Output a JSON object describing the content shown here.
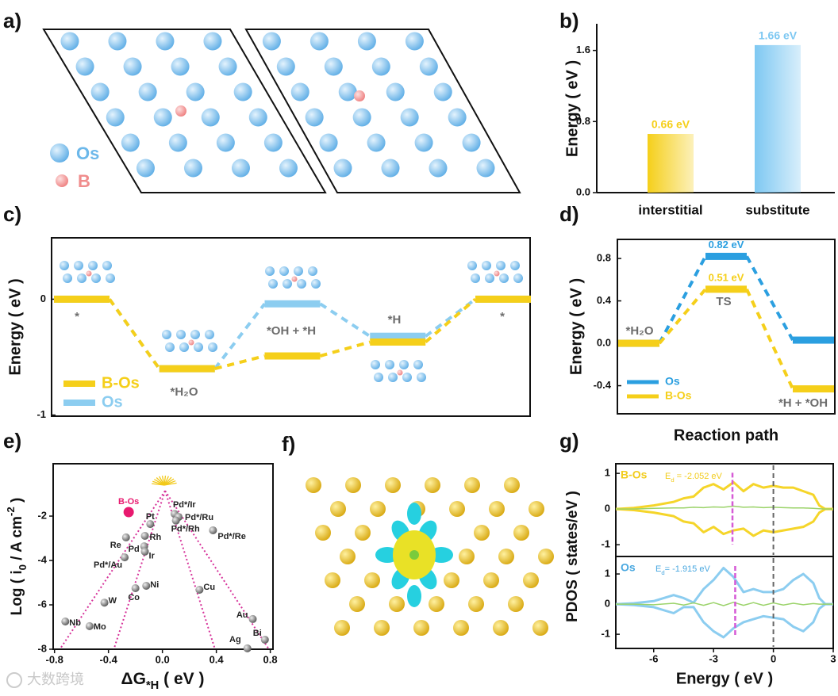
{
  "figures": [
    {
      "label": "a)",
      "legend": [
        "Os",
        "B"
      ]
    },
    {
      "label": "f)"
    }
  ],
  "watermark": "大数跨境",
  "chart_data": [
    {
      "type": "bar",
      "label": "b)",
      "ylabel": "Energy ( eV )",
      "categories": [
        "interstitial",
        "substitute"
      ],
      "values": [
        0.66,
        1.66
      ],
      "value_labels": [
        "0.66 eV",
        "1.66 eV"
      ],
      "colors": [
        "#f5cf1a",
        "#7ec8f2"
      ],
      "ylim": [
        0,
        1.9
      ],
      "yticks": [
        {
          "value": 0,
          "label": "0.0"
        },
        0.8,
        1.6
      ]
    },
    {
      "type": "energy-diagram",
      "label": "c)",
      "ylabel": "Energy ( eV )",
      "categories": [
        "*",
        "*H₂O",
        "*OH + *H",
        "*H",
        "*"
      ],
      "series": [
        {
          "name": "B-Os",
          "color": "#f5cf1a",
          "values": [
            0,
            -0.6,
            -0.49,
            -0.37,
            0
          ]
        },
        {
          "name": "Os",
          "color": "#8ccdf0",
          "values": [
            0,
            -0.6,
            -0.04,
            -0.32,
            0
          ]
        }
      ],
      "ylim": [
        -1.01,
        0.53
      ],
      "yticks": [
        -1,
        0
      ],
      "legend": "lower left"
    },
    {
      "type": "energy-diagram",
      "label": "d)",
      "ylabel": "Energy ( eV )",
      "xlabel": "Reaction path",
      "categories": [
        "*H₂O",
        "TS",
        "*H + *OH"
      ],
      "series": [
        {
          "name": "Os",
          "color": "#2b9fe0",
          "values": [
            0,
            0.82,
            0.03
          ],
          "value_labels": [
            null,
            "0.82 eV",
            null
          ]
        },
        {
          "name": "B-Os",
          "color": "#f5cf1a",
          "values": [
            0,
            0.51,
            -0.43
          ],
          "value_labels": [
            null,
            "0.51 eV",
            null
          ]
        }
      ],
      "ylim": [
        -0.665,
        0.98
      ],
      "yticks": [
        -0.4,
        {
          "value": 0,
          "label": "0.0"
        },
        0.4,
        0.8
      ],
      "legend": "lower left"
    },
    {
      "type": "scatter",
      "label": "e)",
      "xlabel": [
        "ΔG",
        "*H",
        " ( eV )"
      ],
      "ylabel": [
        "Log ( i",
        "0",
        " / A cm",
        "-2",
        " )"
      ],
      "point_labels": [
        "B-Os",
        "Pt",
        "Re",
        "Pd",
        "Rh",
        "Ir",
        "Pd*/Au",
        "Pd*/Ir",
        "Pd*/Ru",
        "Pd*/Rh",
        "Pd*/Re",
        "Ni",
        "Co",
        "Cu",
        "W",
        "Nb",
        "Mo",
        "Au",
        "Bi",
        "Ag"
      ],
      "x": [
        -0.25,
        -0.09,
        -0.27,
        -0.135,
        -0.13,
        -0.13,
        -0.28,
        0.09,
        0.12,
        0.1,
        0.375,
        -0.12,
        -0.2,
        0.275,
        -0.43,
        -0.72,
        -0.54,
        0.67,
        0.76,
        0.63
      ],
      "values": [
        -1.82,
        -2.36,
        -2.96,
        -3.36,
        -2.89,
        -3.6,
        -3.86,
        -1.9,
        -2.04,
        -2.2,
        -2.64,
        -5.14,
        -5.25,
        -5.32,
        -5.9,
        -6.75,
        -6.96,
        -6.64,
        -7.57,
        -7.96
      ],
      "colors": [
        "#e8196f",
        "#777777",
        "#777777",
        "#777777",
        "#777777",
        "#777777",
        "#777777",
        "#777777",
        "#777777",
        "#777777",
        "#777777",
        "#777777",
        "#777777",
        "#777777",
        "#777777",
        "#777777",
        "#777777",
        "#777777",
        "#777777",
        "#777777"
      ],
      "trend_color": "#d6339a",
      "trend_lines": [
        {
          "x": [
            0.02,
            -0.76
          ],
          "y": [
            -0.86,
            -8
          ]
        },
        {
          "x": [
            0.02,
            -0.36
          ],
          "y": [
            -0.86,
            -8
          ]
        },
        {
          "x": [
            0.02,
            0.39
          ],
          "y": [
            -0.86,
            -8
          ]
        },
        {
          "x": [
            0.02,
            0.79
          ],
          "y": [
            -0.86,
            -8
          ]
        }
      ],
      "xlim": [
        -0.81,
        0.82
      ],
      "xticks": [
        -0.8,
        -0.4,
        {
          "value": 0,
          "label": "0.0"
        },
        0.4,
        0.8
      ],
      "ylim": [
        -8,
        0.36
      ],
      "yticks": [
        -8,
        -6,
        -4,
        -2
      ]
    },
    {
      "type": "line",
      "label": "g)",
      "ylabel": "PDOS ( states/eV )",
      "xlabel": "Energy ( eV )",
      "x": [
        -7.9,
        -7,
        -6,
        -5,
        -4.5,
        -4,
        -3.5,
        -3,
        -2.5,
        -2,
        -1.5,
        -1,
        -0.5,
        0,
        0.5,
        1,
        1.5,
        2,
        2.3,
        2.6,
        3
      ],
      "xlim": [
        -7.9,
        3
      ],
      "xticks": [
        -6,
        -3,
        0,
        3
      ],
      "fermi": 0,
      "ed_color": "#d65ad6",
      "subplots": [
        {
          "name": "B-Os",
          "color": "#f2cc1c",
          "ylim": [
            -1.33,
            1.27
          ],
          "yticks": [
            -1,
            0,
            1
          ],
          "ed": -2.052,
          "ed_label": [
            "E",
            "d",
            " = -2.052 eV"
          ],
          "series": [
            {
              "color": "#f5d52a",
              "values": [
                0,
                0.03,
                0.1,
                0.2,
                0.3,
                0.35,
                0.6,
                0.7,
                0.55,
                0.75,
                0.5,
                0.7,
                0.6,
                0.65,
                0.6,
                0.6,
                0.5,
                0.4,
                0.1,
                0,
                0
              ]
            },
            {
              "color": "#f5d52a",
              "values": [
                0,
                -0.03,
                -0.1,
                -0.2,
                -0.35,
                -0.4,
                -0.65,
                -0.5,
                -0.7,
                -0.6,
                -0.55,
                -0.75,
                -0.6,
                -0.65,
                -0.6,
                -0.55,
                -0.5,
                -0.35,
                -0.1,
                0,
                0
              ]
            },
            {
              "color": "#9bd36a",
              "values": [
                0,
                0,
                0.02,
                0.03,
                0.03,
                0.05,
                0.04,
                0.06,
                0.05,
                0.08,
                0.05,
                0.06,
                0.04,
                0.05,
                0.04,
                0.03,
                0.03,
                0.02,
                0.01,
                0,
                0
              ]
            }
          ]
        },
        {
          "name": "Os",
          "color": "#4aa8e0",
          "ylim": [
            -1.47,
            1.58
          ],
          "yticks": [
            -1,
            0,
            1
          ],
          "ed": -1.915,
          "ed_label": [
            "E",
            "d",
            "= -1.915 eV"
          ],
          "series": [
            {
              "color": "#8ccdf0",
              "values": [
                0,
                0.03,
                0.1,
                0.3,
                0.2,
                0.05,
                0.5,
                0.8,
                1.2,
                0.9,
                0.4,
                0.5,
                0.4,
                0.4,
                0.5,
                0.8,
                1.0,
                0.7,
                0.2,
                0,
                0
              ]
            },
            {
              "color": "#8ccdf0",
              "values": [
                0,
                -0.03,
                -0.1,
                -0.3,
                -0.1,
                -0.1,
                -0.6,
                -0.9,
                -1.1,
                -0.8,
                -0.6,
                -0.5,
                -0.4,
                -0.45,
                -0.5,
                -0.75,
                -0.9,
                -0.6,
                -0.15,
                0,
                0
              ]
            },
            {
              "color": "#9bd36a",
              "values": [
                0,
                0,
                -0.02,
                0.03,
                -0.03,
                0.04,
                -0.04,
                0.05,
                -0.05,
                0.06,
                -0.04,
                0.05,
                -0.04,
                0.04,
                -0.03,
                0.03,
                -0.02,
                0.02,
                0,
                0,
                0
              ]
            }
          ]
        }
      ]
    }
  ]
}
